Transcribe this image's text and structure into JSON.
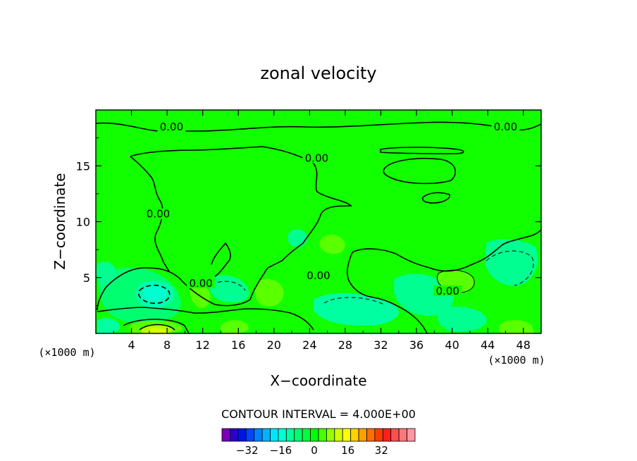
{
  "chart_data": {
    "type": "contour",
    "title": "zonal velocity",
    "xlabel": "X−coordinate",
    "ylabel": "Z−coordinate",
    "x_unit": "(×1000 m)",
    "y_unit": "(×1000 m)",
    "xlim": [
      0,
      50
    ],
    "ylim": [
      0,
      20
    ],
    "x_ticks": [
      4,
      8,
      12,
      16,
      20,
      24,
      28,
      32,
      36,
      40,
      44,
      48
    ],
    "x_tick_labels": [
      "4",
      "8",
      "12",
      "16",
      "20",
      "24",
      "28",
      "32",
      "36",
      "40",
      "44",
      "48"
    ],
    "y_ticks": [
      5,
      10,
      15
    ],
    "y_tick_labels": [
      "5",
      "10",
      "15"
    ],
    "contour_interval_text": "CONTOUR INTERVAL = 4.000E+00",
    "contour_labels": [
      {
        "text": "0.00",
        "x": 8.5,
        "y": 18.3
      },
      {
        "text": "0.00",
        "x": 46.0,
        "y": 18.3
      },
      {
        "text": "0.00",
        "x": 24.8,
        "y": 15.5
      },
      {
        "text": "0.00",
        "x": 7.0,
        "y": 10.5
      },
      {
        "text": "0.00",
        "x": 11.8,
        "y": 4.3
      },
      {
        "text": "0.00",
        "x": 25.0,
        "y": 5.0
      },
      {
        "text": "0.00",
        "x": 39.5,
        "y": 3.6
      }
    ],
    "colorbar": {
      "colors": [
        "#7a00b4",
        "#2c00c8",
        "#0014e6",
        "#0046ff",
        "#0080ff",
        "#00b4ff",
        "#00e6ff",
        "#00ffd2",
        "#00ffa0",
        "#00ff6e",
        "#00ff3c",
        "#00ff00",
        "#46ff00",
        "#96ff00",
        "#d2ff00",
        "#ffff00",
        "#ffd200",
        "#ffa000",
        "#ff6e00",
        "#ff3c00",
        "#ff1e1e",
        "#ff5050",
        "#ff7878",
        "#ff96a0"
      ],
      "tick_labels": [
        "−32",
        "−16",
        "0",
        "16",
        "32"
      ],
      "tick_values": [
        -32,
        -16,
        0,
        16,
        32
      ],
      "range": [
        -44,
        48
      ]
    },
    "background_color": "#12ff00"
  }
}
